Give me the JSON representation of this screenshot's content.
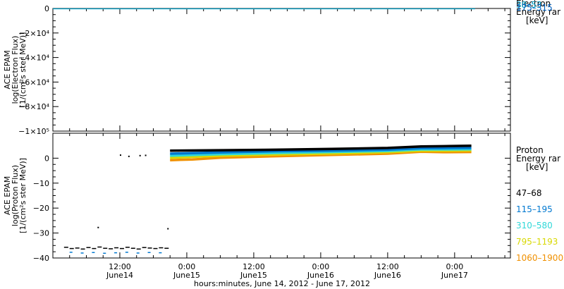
{
  "chart_data": [
    {
      "type": "line",
      "ylabel_lines": [
        "ACE EPAM",
        "log(Electron Flux)",
        "[1/(cm²s ster MeV)]"
      ],
      "ylim": [
        -100000,
        0
      ],
      "ytick_labels": [
        "0",
        "−2×10⁴",
        "−4×10⁴",
        "−6×10⁴",
        "−8×10⁴",
        "−1×10⁵"
      ],
      "ytick_values": [
        0,
        -20000,
        -40000,
        -60000,
        -80000,
        -100000
      ],
      "legend": {
        "title_lines": [
          "Electron",
          "Energy rar",
          "[keV]"
        ],
        "entries": [
          {
            "label": "38–53",
            "color": "#00a0c8"
          },
          {
            "label": "175–315",
            "color": "#0060c0"
          }
        ]
      }
    },
    {
      "type": "line",
      "ylabel_lines": [
        "ACE EPAM",
        "log(Proton Flux)",
        "[1/(cm²s ster MeV)]"
      ],
      "ylim": [
        -40,
        10
      ],
      "ytick_labels": [
        "0",
        "−10",
        "−20",
        "−30",
        "−40"
      ],
      "ytick_values": [
        0,
        -10,
        -20,
        -30,
        -40
      ],
      "xlim": [
        0,
        82
      ],
      "xtick_values": [
        12,
        24,
        36,
        48,
        60,
        72
      ],
      "xtick_labels": [
        {
          "time": "12:00",
          "day": "June14"
        },
        {
          "time": "0:00",
          "day": "June15"
        },
        {
          "time": "12:00",
          "day": "June15"
        },
        {
          "time": "0:00",
          "day": "June16"
        },
        {
          "time": "12:00",
          "day": "June16"
        },
        {
          "time": "0:00",
          "day": "June17"
        }
      ],
      "xlabel": "hours:minutes, June 14, 2012 - June 17, 2012",
      "legend": {
        "title_lines": [
          "Proton",
          "Energy rar",
          "[keV]"
        ],
        "entries": [
          {
            "label": "47–68",
            "color": "#000000"
          },
          {
            "label": "115–195",
            "color": "#0078d0"
          },
          {
            "label": "310–580",
            "color": "#30d8d8"
          },
          {
            "label": "795–1193",
            "color": "#d8d800"
          },
          {
            "label": "1060–1900",
            "color": "#f09000"
          }
        ]
      },
      "series": [
        {
          "name": "47–68",
          "color": "#000000",
          "x": [
            21,
            30,
            40,
            50,
            60,
            66,
            70,
            75
          ],
          "y": [
            3.0,
            3.2,
            3.4,
            3.7,
            4.1,
            4.7,
            4.8,
            5.0
          ],
          "early_x": [
            12,
            13.5,
            15.5,
            16.5
          ],
          "early_y": [
            1.5,
            1.0,
            1.3,
            1.4
          ]
        },
        {
          "name": "115–195",
          "color": "#0078d0",
          "x": [
            21,
            30,
            40,
            50,
            60,
            66,
            70,
            75
          ],
          "y": [
            1.8,
            2.3,
            2.8,
            3.0,
            3.4,
            4.0,
            4.0,
            4.1
          ]
        },
        {
          "name": "310–580",
          "color": "#30d8d8",
          "x": [
            21,
            30,
            40,
            50,
            60,
            66,
            70,
            75
          ],
          "y": [
            1.0,
            1.6,
            2.1,
            2.5,
            2.9,
            3.5,
            3.5,
            3.6
          ]
        },
        {
          "name": "795–1193",
          "color": "#d8d800",
          "x": [
            21,
            30,
            40,
            50,
            60,
            66,
            70,
            75
          ],
          "y": [
            0.2,
            1.0,
            1.5,
            1.9,
            2.4,
            3.0,
            3.0,
            3.1
          ]
        },
        {
          "name": "1060–1900",
          "color": "#f09000",
          "x": [
            21,
            25,
            30,
            40,
            50,
            60,
            66,
            70,
            75
          ],
          "y": [
            -0.8,
            -0.5,
            0.2,
            0.8,
            1.3,
            1.8,
            2.6,
            2.4,
            2.5
          ]
        }
      ],
      "low_points": {
        "x": [
          2,
          3,
          4,
          5,
          6,
          7,
          8,
          9,
          10,
          11,
          12,
          13,
          14,
          15,
          16,
          17,
          18,
          19,
          20
        ],
        "y": [
          -35.5,
          -36.0,
          -35.8,
          -36.2,
          -35.6,
          -36.0,
          -35.4,
          -35.9,
          -36.1,
          -35.7,
          -36.0,
          -35.5,
          -35.9,
          -36.2,
          -35.6,
          -35.8,
          -36.0,
          -35.7,
          -35.9
        ],
        "color": "#000000"
      },
      "low_points_b": {
        "x": [
          3,
          5,
          7,
          9,
          11,
          13,
          15,
          17,
          19
        ],
        "y": [
          -37.5,
          -37.8,
          -37.6,
          -37.9,
          -37.7,
          -37.5,
          -37.8,
          -37.6,
          -37.7
        ],
        "color": "#0078d0"
      },
      "outliers": {
        "x": [
          8,
          20.5
        ],
        "y": [
          -27.5,
          -28.0
        ]
      }
    }
  ]
}
